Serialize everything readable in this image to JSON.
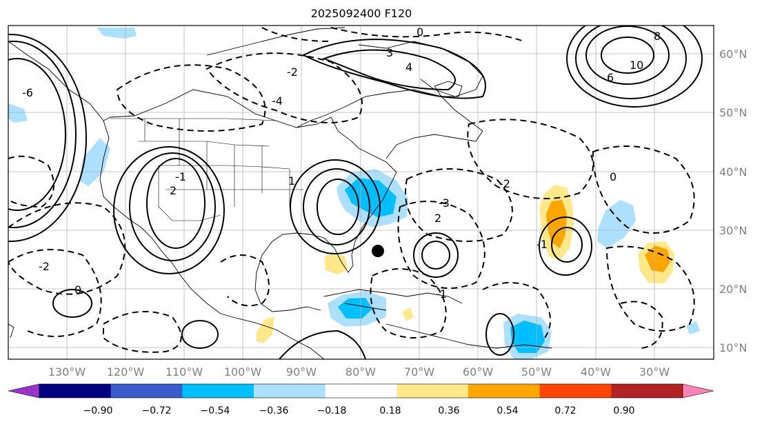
{
  "title": "2025092400 F120",
  "map": {
    "lon_labels": [
      "130°W",
      "120°W",
      "110°W",
      "100°W",
      "90°W",
      "80°W",
      "70°W",
      "60°W",
      "50°W",
      "40°W",
      "30°W"
    ],
    "lat_labels": [
      "60°N",
      "50°N",
      "40°N",
      "30°N",
      "20°N",
      "10°N"
    ],
    "contour_labels": [
      "0",
      "3",
      "4",
      "-2",
      "-4",
      "-1",
      "2",
      "1",
      "-3",
      "8",
      "10",
      "6",
      "-6",
      "-2",
      "0",
      "2",
      "-1",
      "-2",
      "-1",
      "0"
    ],
    "marker": "storm-center-dot"
  },
  "colorbar": {
    "ticks": [
      "−0.90",
      "−0.72",
      "−0.54",
      "−0.36",
      "−0.18",
      "0.18",
      "0.36",
      "0.54",
      "0.72",
      "0.90"
    ],
    "colors": [
      "#9933cc",
      "#000080",
      "#3a5bcc",
      "#00bfff",
      "#addfff",
      "#ffffff",
      "#ffe88a",
      "#ffa500",
      "#ff4500",
      "#b22222",
      "#ff82b4"
    ]
  }
}
